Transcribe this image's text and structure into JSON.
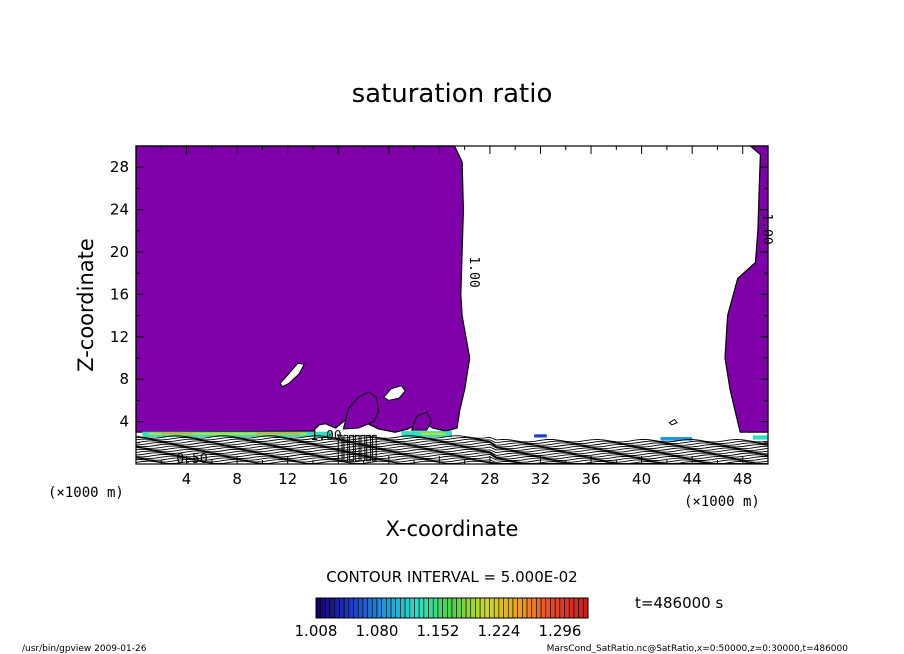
{
  "chart_data": {
    "type": "contour",
    "title": "saturation ratio",
    "xlabel": "X-coordinate",
    "ylabel": "Z-coordinate",
    "x_unit": "(×1000 m)",
    "y_unit": "(×1000 m)",
    "xlim": [
      0,
      50
    ],
    "ylim": [
      0,
      30
    ],
    "xticks": [
      4,
      8,
      12,
      16,
      20,
      24,
      28,
      32,
      36,
      40,
      44,
      48
    ],
    "yticks": [
      4,
      8,
      12,
      16,
      20,
      24,
      28
    ],
    "contour_interval": "CONTOUR INTERVAL = 5.000E-02",
    "contour_labels": [
      "1.00",
      "1.00",
      "1.00",
      "0.50"
    ],
    "colorbar_ticks": [
      "1.008",
      "1.080",
      "1.152",
      "1.224",
      "1.296"
    ],
    "colorbar_range": [
      1.008,
      1.296
    ],
    "time_label": "t=486000 s",
    "fill_color": "#7f00a8",
    "colormap": [
      "#14006e",
      "#1e3cc8",
      "#1e9bdc",
      "#2ee0c0",
      "#52d24a",
      "#c8dc28",
      "#f0a01e",
      "#e84a28",
      "#c81e1e"
    ]
  },
  "footer": {
    "left": "/usr/bin/gpview   2009-01-26",
    "right": "MarsCond_SatRatio.nc@SatRatio,x=0:50000,z=0:30000,t=486000"
  }
}
